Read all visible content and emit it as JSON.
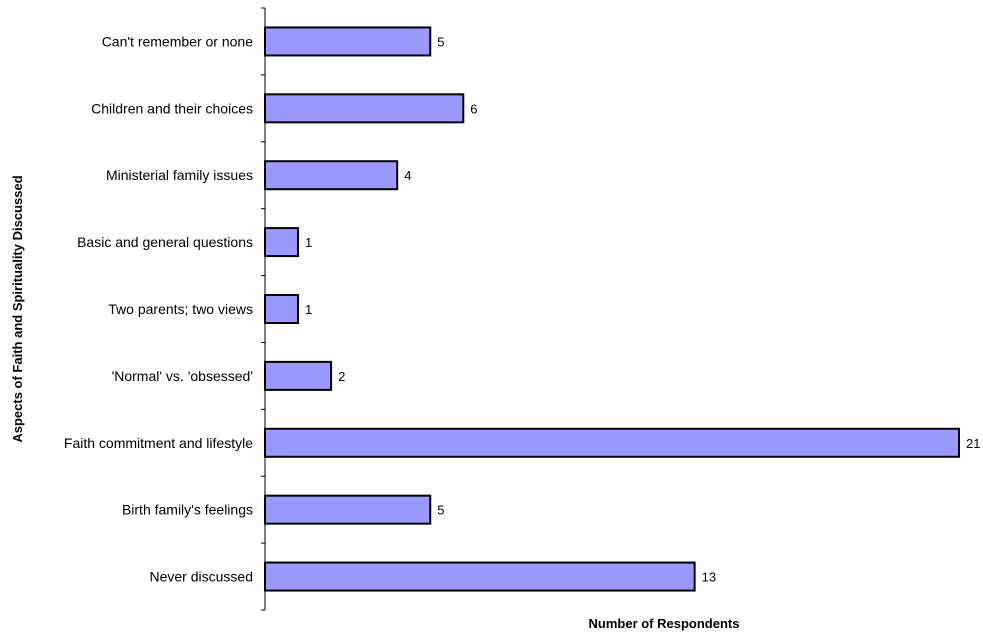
{
  "chart_data": {
    "type": "bar",
    "orientation": "horizontal",
    "title": "",
    "xlabel": "Number of Respondents",
    "ylabel": "Aspects of Faith and Spirituality Discussed",
    "categories": [
      "Can't remember or none",
      "Children and their choices",
      "Ministerial family issues",
      "Basic and general questions",
      "Two parents; two views",
      "'Normal' vs. 'obsessed'",
      "Faith commitment and lifestyle",
      "Birth family's feelings",
      "Never discussed"
    ],
    "values": [
      5,
      6,
      4,
      1,
      1,
      2,
      21,
      5,
      13
    ],
    "data_labels": [
      "5",
      "6",
      "4",
      "1",
      "1",
      "2",
      "21",
      "5",
      "13"
    ],
    "xlim": [
      0,
      21
    ],
    "grid": false,
    "legend": "none",
    "colors": {
      "bar_fill": "#9999FF",
      "bar_stroke": "#000000",
      "axis": "#000000"
    }
  }
}
